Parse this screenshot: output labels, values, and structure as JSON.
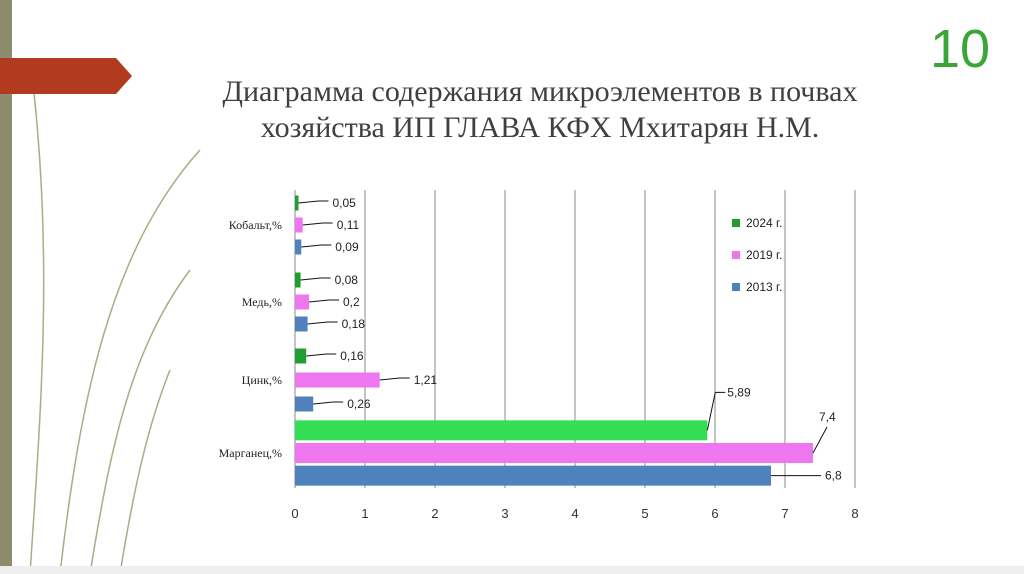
{
  "slide": {
    "number": "10",
    "title_line1": "Диаграмма содержания микроэлементов в почвах",
    "title_line2": "хозяйства ИП ГЛАВА КФХ Мхитарян Н.М."
  },
  "colors": {
    "2024": "#1e9e33",
    "2019": "#ee76ee",
    "2013": "#4f81bd",
    "2024_manganese": "#33dd55",
    "grid": "#8a8a8a",
    "accent_tab": "#b23a1e",
    "number": "#3aa637"
  },
  "chart_data": {
    "type": "bar",
    "orientation": "horizontal",
    "categories": [
      "Кобальт,%",
      "Медь,%",
      "Цинк,%",
      "Марганец,%"
    ],
    "series": [
      {
        "name": "2024 г.",
        "values": [
          0.05,
          0.08,
          0.16,
          5.89
        ],
        "labels": [
          "0,05",
          "0,08",
          "0,16",
          "5,89"
        ]
      },
      {
        "name": "2019 г.",
        "values": [
          0.11,
          0.2,
          1.21,
          7.4
        ],
        "labels": [
          "0,11",
          "0,2",
          "1,21",
          "7,4"
        ]
      },
      {
        "name": "2013 г.",
        "values": [
          0.09,
          0.18,
          0.26,
          6.8
        ],
        "labels": [
          "0,09",
          "0,18",
          "0,26",
          "6,8"
        ]
      }
    ],
    "x_ticks": [
      "0",
      "1",
      "2",
      "3",
      "4",
      "5",
      "6",
      "7",
      "8"
    ],
    "xlim": [
      0,
      8
    ],
    "grid": "vertical",
    "legend_position": "top-right"
  }
}
